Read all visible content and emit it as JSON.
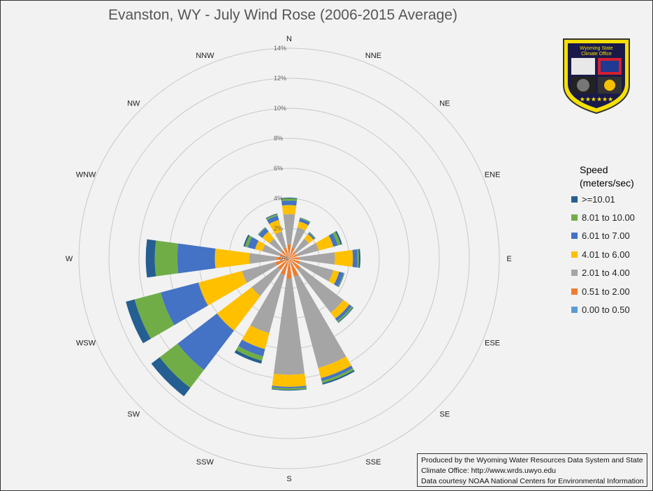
{
  "title": "Evanston, WY - July Wind Rose (2006-2015 Average)",
  "legend": {
    "title": "Speed\n(meters/sec)"
  },
  "credit": {
    "line1": "Produced by the Wyoming Water Resources Data System and State",
    "line2": "Climate Office: http://www.wrds.uwyo.edu",
    "line3": "Data courtesy NOAA National Centers for Environmental Information"
  },
  "logo": {
    "line1": "Wyoming State",
    "line2": "Climate Office"
  },
  "chart_data": {
    "type": "wind_rose",
    "title": "Evanston, WY - July Wind Rose (2006-2015 Average)",
    "radial_axis": {
      "max": 14,
      "ticks": [
        "2%",
        "4%",
        "6%",
        "8%",
        "10%",
        "12%",
        "14%"
      ],
      "unit": "percent",
      "zero_label": "0%"
    },
    "directions": [
      "N",
      "NNE",
      "NE",
      "ENE",
      "E",
      "ESE",
      "SE",
      "SSE",
      "S",
      "SSW",
      "SW",
      "WSW",
      "W",
      "WNW",
      "NW",
      "NNW"
    ],
    "legend_title": "Speed (meters/sec)",
    "series": [
      {
        "name": "0.00 to 0.50",
        "color": "#5b9bd5",
        "values": [
          0.05,
          0.05,
          0.05,
          0.05,
          0.05,
          0.05,
          0.05,
          0.05,
          0.05,
          0.05,
          0.05,
          0.05,
          0.05,
          0.05,
          0.05,
          0.05
        ]
      },
      {
        "name": "0.51 to 2.00",
        "color": "#ed7d31",
        "values": [
          0.9,
          0.7,
          0.5,
          0.5,
          0.6,
          0.7,
          0.9,
          1.2,
          1.3,
          1.1,
          0.9,
          0.9,
          0.8,
          0.6,
          0.6,
          0.7
        ]
      },
      {
        "name": "2.01 to 4.00",
        "color": "#a5a5a5",
        "values": [
          2.0,
          1.4,
          1.1,
          1.5,
          2.4,
          2.3,
          3.6,
          6.3,
          6.4,
          4.0,
          2.2,
          2.3,
          1.8,
          1.2,
          1.0,
          1.1
        ]
      },
      {
        "name": "4.01 to 6.00",
        "color": "#ffc000",
        "values": [
          0.6,
          0.4,
          0.4,
          1.0,
          1.2,
          0.4,
          0.5,
          0.7,
          0.8,
          1.1,
          2.9,
          3.0,
          2.3,
          0.5,
          0.6,
          0.8
        ]
      },
      {
        "name": "6.01 to 7.00",
        "color": "#4472c4",
        "values": [
          0.3,
          0.2,
          0.1,
          0.3,
          0.3,
          0.3,
          0.2,
          0.2,
          0.1,
          0.5,
          3.3,
          2.6,
          2.5,
          0.5,
          0.3,
          0.3
        ]
      },
      {
        "name": "8.01 to 10.00",
        "color": "#70ad47",
        "values": [
          0.15,
          0.05,
          0.05,
          0.2,
          0.1,
          0.05,
          0.1,
          0.15,
          0.1,
          0.3,
          1.5,
          1.8,
          1.5,
          0.2,
          0.05,
          0.1
        ]
      },
      {
        "name": ">=10.01",
        "color": "#255e91",
        "values": [
          0.05,
          0.02,
          0.02,
          0.1,
          0.1,
          0.02,
          0.05,
          0.1,
          0.05,
          0.2,
          0.7,
          0.6,
          0.6,
          0.1,
          0.02,
          0.05
        ]
      }
    ]
  }
}
